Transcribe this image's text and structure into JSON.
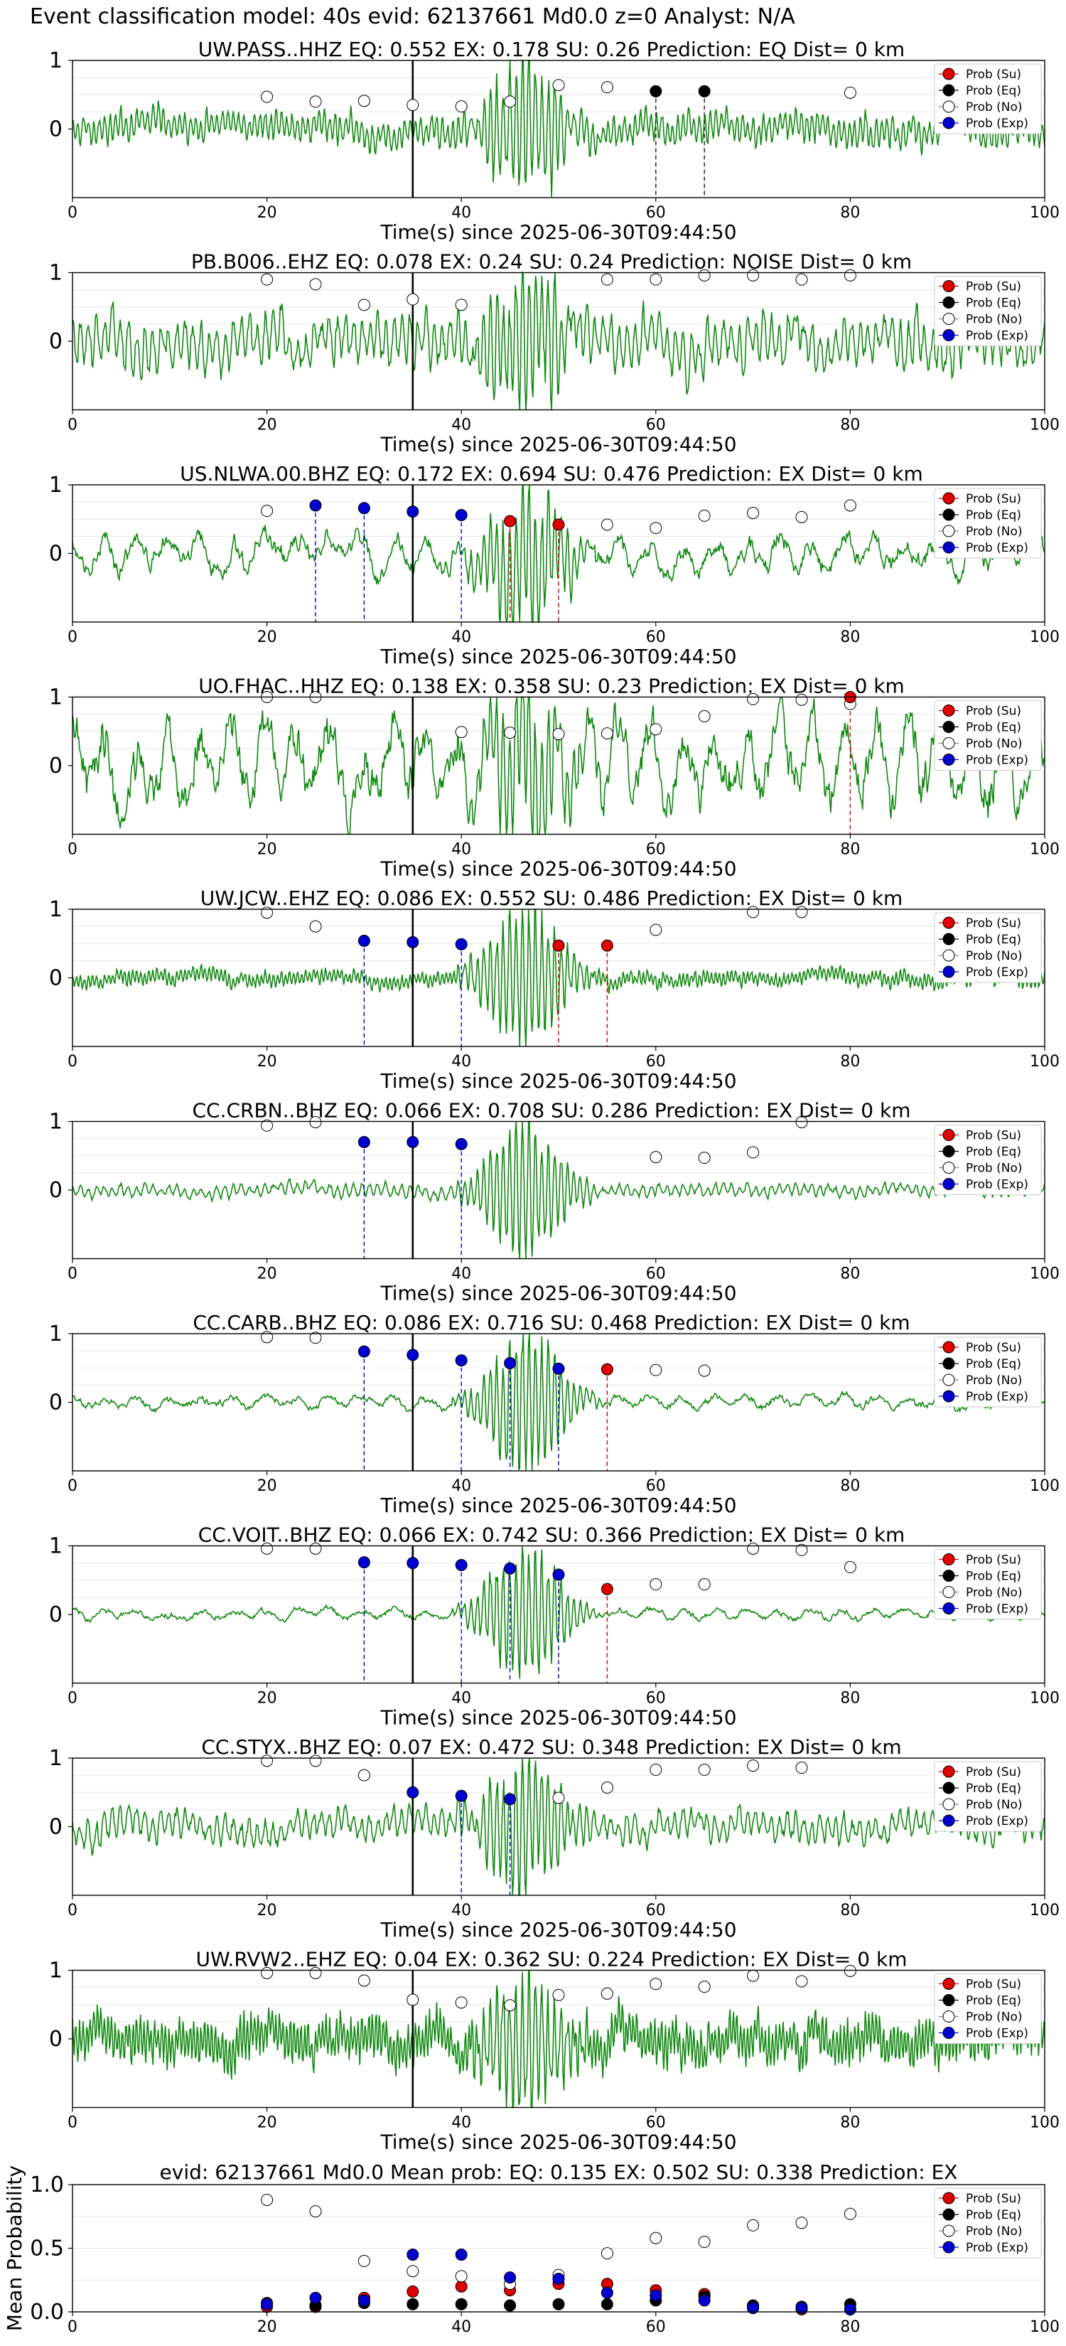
{
  "figure": {
    "suptitle": "Event classification model: 40s evid: 62137661 Md0.0 z=0 Analyst: N/A",
    "xlabel": "Time(s) since 2025-06-30T09:44:50",
    "legend": [
      "Prob (Su)",
      "Prob (Eq)",
      "Prob (No)",
      "Prob (Exp)"
    ],
    "colors": {
      "su": "#e00000",
      "eq": "#000000",
      "no": "#ffffff",
      "exp": "#0000d0",
      "trace": "#118811"
    }
  },
  "chart_data": [
    {
      "type": "line",
      "title": "UW.PASS..HHZ   EQ: 0.552  EX: 0.178  SU: 0.26   Prediction: EQ    Dist= 0 km",
      "xlim": [
        0,
        100
      ],
      "xticks": [
        0,
        20,
        40,
        60,
        80,
        100
      ],
      "yticks": [
        0,
        1
      ],
      "ylim": [
        -1,
        1
      ],
      "pick": 35,
      "seed": 11,
      "amp": 0.3,
      "freq": 6,
      "event_amp": 0.95,
      "markers": {
        "su": [],
        "eq": [
          [
            60,
            0.55
          ],
          [
            65,
            0.55
          ]
        ],
        "no": [
          [
            20,
            0.47
          ],
          [
            25,
            0.4
          ],
          [
            30,
            0.41
          ],
          [
            35,
            0.35
          ],
          [
            40,
            0.33
          ],
          [
            45,
            0.4
          ],
          [
            50,
            0.64
          ],
          [
            55,
            0.61
          ],
          [
            80,
            0.53
          ]
        ],
        "exp": []
      }
    },
    {
      "type": "line",
      "title": "PB.B006..EHZ   EQ: 0.078  EX: 0.24  SU: 0.24   Prediction: NOISE    Dist= 0 km",
      "xlim": [
        0,
        100
      ],
      "xticks": [
        0,
        20,
        40,
        60,
        80,
        100
      ],
      "yticks": [
        0,
        1
      ],
      "ylim": [
        -1,
        1
      ],
      "pick": 35,
      "seed": 23,
      "amp": 0.5,
      "freq": 4,
      "event_amp": 0.95,
      "markers": {
        "su": [],
        "eq": [],
        "no": [
          [
            20,
            0.9
          ],
          [
            25,
            0.83
          ],
          [
            30,
            0.53
          ],
          [
            35,
            0.61
          ],
          [
            40,
            0.53
          ],
          [
            55,
            0.9
          ],
          [
            60,
            0.9
          ],
          [
            65,
            0.96
          ],
          [
            70,
            0.96
          ],
          [
            75,
            0.9
          ],
          [
            80,
            0.96
          ]
        ],
        "exp": []
      }
    },
    {
      "type": "line",
      "title": "US.NLWA.00.BHZ   EQ: 0.172  EX: 0.694  SU: 0.476   Prediction: EX    Dist= 0 km",
      "xlim": [
        0,
        100
      ],
      "xticks": [
        0,
        20,
        40,
        60,
        80,
        100
      ],
      "yticks": [
        0,
        1
      ],
      "ylim": [
        -1,
        1
      ],
      "pick": 35,
      "seed": 37,
      "amp": 0.35,
      "freq": 1,
      "event_amp": 0.95,
      "markers": {
        "su": [
          [
            45,
            0.47
          ],
          [
            50,
            0.42
          ]
        ],
        "eq": [],
        "no": [
          [
            20,
            0.62
          ],
          [
            55,
            0.42
          ],
          [
            60,
            0.37
          ],
          [
            65,
            0.55
          ],
          [
            70,
            0.59
          ],
          [
            75,
            0.53
          ],
          [
            80,
            0.7
          ]
        ],
        "exp": [
          [
            25,
            0.7
          ],
          [
            30,
            0.66
          ],
          [
            35,
            0.61
          ],
          [
            40,
            0.56
          ]
        ]
      }
    },
    {
      "type": "line",
      "title": "UO.FHAC..HHZ   EQ: 0.138  EX: 0.358  SU: 0.23   Prediction: EX    Dist= 0 km",
      "xlim": [
        0,
        100
      ],
      "xticks": [
        0,
        20,
        40,
        60,
        80,
        100
      ],
      "yticks": [
        0,
        1
      ],
      "ylim": [
        -1,
        1
      ],
      "pick": 35,
      "seed": 41,
      "amp": 0.8,
      "freq": 1,
      "event_amp": 0.95,
      "markers": {
        "su": [
          [
            80,
            1.0
          ]
        ],
        "eq": [],
        "no": [
          [
            20,
            1.0
          ],
          [
            25,
            1.0
          ],
          [
            40,
            0.49
          ],
          [
            45,
            0.48
          ],
          [
            50,
            0.46
          ],
          [
            55,
            0.47
          ],
          [
            60,
            0.53
          ],
          [
            65,
            0.72
          ],
          [
            70,
            0.97
          ],
          [
            75,
            0.96
          ],
          [
            80,
            0.9
          ]
        ],
        "exp": []
      }
    },
    {
      "type": "line",
      "title": "UW.JCW..EHZ   EQ: 0.086  EX: 0.552  SU: 0.486   Prediction: EX    Dist= 0 km",
      "xlim": [
        0,
        100
      ],
      "xticks": [
        0,
        20,
        40,
        60,
        80,
        100
      ],
      "yticks": [
        0,
        1
      ],
      "ylim": [
        -1,
        1
      ],
      "pick": 35,
      "seed": 53,
      "amp": 0.15,
      "freq": 8,
      "event_amp": 0.95,
      "markers": {
        "su": [
          [
            50,
            0.47
          ],
          [
            55,
            0.47
          ]
        ],
        "eq": [],
        "no": [
          [
            20,
            0.95
          ],
          [
            25,
            0.75
          ],
          [
            60,
            0.7
          ],
          [
            70,
            0.96
          ],
          [
            75,
            0.96
          ]
        ],
        "exp": [
          [
            30,
            0.54
          ],
          [
            35,
            0.52
          ],
          [
            40,
            0.49
          ]
        ]
      }
    },
    {
      "type": "line",
      "title": "CC.CRBN..BHZ   EQ: 0.066  EX: 0.708  SU: 0.286   Prediction: EX    Dist= 0 km",
      "xlim": [
        0,
        100
      ],
      "xticks": [
        0,
        20,
        40,
        60,
        80,
        100
      ],
      "yticks": [
        0,
        1
      ],
      "ylim": [
        -1,
        1
      ],
      "pick": 35,
      "seed": 67,
      "amp": 0.12,
      "freq": 4,
      "event_amp": 0.95,
      "markers": {
        "su": [],
        "eq": [],
        "no": [
          [
            20,
            0.94
          ],
          [
            25,
            0.99
          ],
          [
            60,
            0.48
          ],
          [
            65,
            0.47
          ],
          [
            70,
            0.55
          ],
          [
            75,
            0.99
          ]
        ],
        "exp": [
          [
            30,
            0.7
          ],
          [
            35,
            0.7
          ],
          [
            40,
            0.67
          ]
        ]
      }
    },
    {
      "type": "line",
      "title": "CC.CARB..BHZ   EQ: 0.086  EX: 0.716  SU: 0.468   Prediction: EX    Dist= 0 km",
      "xlim": [
        0,
        100
      ],
      "xticks": [
        0,
        20,
        40,
        60,
        80,
        100
      ],
      "yticks": [
        0,
        1
      ],
      "ylim": [
        -1,
        1
      ],
      "pick": 35,
      "seed": 71,
      "amp": 0.12,
      "freq": 1,
      "event_amp": 0.95,
      "markers": {
        "su": [
          [
            55,
            0.48
          ]
        ],
        "eq": [],
        "no": [
          [
            20,
            0.95
          ],
          [
            25,
            0.94
          ],
          [
            60,
            0.47
          ],
          [
            65,
            0.46
          ]
        ],
        "exp": [
          [
            30,
            0.74
          ],
          [
            35,
            0.69
          ],
          [
            40,
            0.61
          ],
          [
            45,
            0.57
          ],
          [
            50,
            0.49
          ]
        ]
      }
    },
    {
      "type": "line",
      "title": "CC.VOIT..BHZ   EQ: 0.066  EX: 0.742  SU: 0.366   Prediction: EX    Dist= 0 km",
      "xlim": [
        0,
        100
      ],
      "xticks": [
        0,
        20,
        40,
        60,
        80,
        100
      ],
      "yticks": [
        0,
        1
      ],
      "ylim": [
        -1,
        1
      ],
      "pick": 35,
      "seed": 83,
      "amp": 0.1,
      "freq": 1,
      "event_amp": 0.95,
      "markers": {
        "su": [
          [
            55,
            0.37
          ]
        ],
        "eq": [],
        "no": [
          [
            20,
            0.96
          ],
          [
            25,
            0.96
          ],
          [
            60,
            0.44
          ],
          [
            65,
            0.44
          ],
          [
            70,
            0.96
          ],
          [
            75,
            0.94
          ],
          [
            80,
            0.69
          ]
        ],
        "exp": [
          [
            30,
            0.76
          ],
          [
            35,
            0.75
          ],
          [
            40,
            0.72
          ],
          [
            45,
            0.67
          ],
          [
            50,
            0.58
          ]
        ]
      }
    },
    {
      "type": "line",
      "title": "CC.STYX..BHZ   EQ: 0.07  EX: 0.472  SU: 0.348   Prediction: EX    Dist= 0 km",
      "xlim": [
        0,
        100
      ],
      "xticks": [
        0,
        20,
        40,
        60,
        80,
        100
      ],
      "yticks": [
        0,
        1
      ],
      "ylim": [
        -1,
        1
      ],
      "pick": 35,
      "seed": 97,
      "amp": 0.3,
      "freq": 4,
      "event_amp": 0.95,
      "markers": {
        "su": [],
        "eq": [],
        "no": [
          [
            20,
            0.96
          ],
          [
            25,
            0.96
          ],
          [
            30,
            0.75
          ],
          [
            50,
            0.42
          ],
          [
            55,
            0.57
          ],
          [
            60,
            0.83
          ],
          [
            65,
            0.83
          ],
          [
            70,
            0.89
          ],
          [
            75,
            0.86
          ]
        ],
        "exp": [
          [
            35,
            0.5
          ],
          [
            40,
            0.45
          ],
          [
            45,
            0.4
          ]
        ]
      }
    },
    {
      "type": "line",
      "title": "UW.RVW2..EHZ   EQ: 0.04  EX: 0.362  SU: 0.224   Prediction: EX    Dist= 0 km",
      "xlim": [
        0,
        100
      ],
      "xticks": [
        0,
        20,
        40,
        60,
        80,
        100
      ],
      "yticks": [
        0,
        1
      ],
      "ylim": [
        -1,
        1
      ],
      "pick": 35,
      "seed": 101,
      "amp": 0.45,
      "freq": 9,
      "event_amp": 0.95,
      "markers": {
        "su": [],
        "eq": [],
        "no": [
          [
            20,
            0.96
          ],
          [
            25,
            0.96
          ],
          [
            30,
            0.85
          ],
          [
            35,
            0.57
          ],
          [
            40,
            0.53
          ],
          [
            45,
            0.49
          ],
          [
            50,
            0.64
          ],
          [
            55,
            0.66
          ],
          [
            60,
            0.8
          ],
          [
            65,
            0.76
          ],
          [
            70,
            0.92
          ],
          [
            75,
            0.84
          ],
          [
            80,
            0.99
          ]
        ],
        "exp": []
      }
    },
    {
      "type": "scatter",
      "title": "evid: 62137661  Md0.0   Mean prob:   EQ: 0.135  EX: 0.502  SU: 0.338   Prediction: EX",
      "ylabel": "Mean Probability",
      "xlim": [
        0,
        100
      ],
      "ylim": [
        0,
        1.0
      ],
      "xticks": [
        0,
        20,
        40,
        60,
        80,
        100
      ],
      "yticks": [
        0.0,
        0.5,
        1.0
      ],
      "grid": true,
      "series": [
        {
          "name": "Prob (Su)",
          "x": [
            20,
            25,
            30,
            35,
            40,
            45,
            50,
            55,
            60,
            65,
            70,
            75,
            80
          ],
          "y": [
            0.04,
            0.04,
            0.11,
            0.16,
            0.2,
            0.17,
            0.22,
            0.22,
            0.17,
            0.14,
            0.04,
            0.02,
            0.02
          ]
        },
        {
          "name": "Prob (Eq)",
          "x": [
            20,
            25,
            30,
            35,
            40,
            45,
            50,
            55,
            60,
            65,
            70,
            75,
            80
          ],
          "y": [
            0.07,
            0.05,
            0.07,
            0.06,
            0.06,
            0.05,
            0.06,
            0.06,
            0.09,
            0.12,
            0.05,
            0.04,
            0.06
          ]
        },
        {
          "name": "Prob (No)",
          "x": [
            20,
            25,
            30,
            35,
            40,
            45,
            50,
            55,
            60,
            65,
            70,
            75,
            80
          ],
          "y": [
            0.88,
            0.79,
            0.4,
            0.32,
            0.28,
            0.22,
            0.29,
            0.46,
            0.58,
            0.55,
            0.68,
            0.7,
            0.77
          ]
        },
        {
          "name": "Prob (Exp)",
          "x": [
            20,
            25,
            30,
            35,
            40,
            45,
            50,
            55,
            60,
            65,
            70,
            75,
            80
          ],
          "y": [
            0.06,
            0.11,
            0.09,
            0.45,
            0.45,
            0.27,
            0.26,
            0.15,
            0.13,
            0.09,
            0.03,
            0.03,
            0.02
          ]
        }
      ]
    }
  ]
}
